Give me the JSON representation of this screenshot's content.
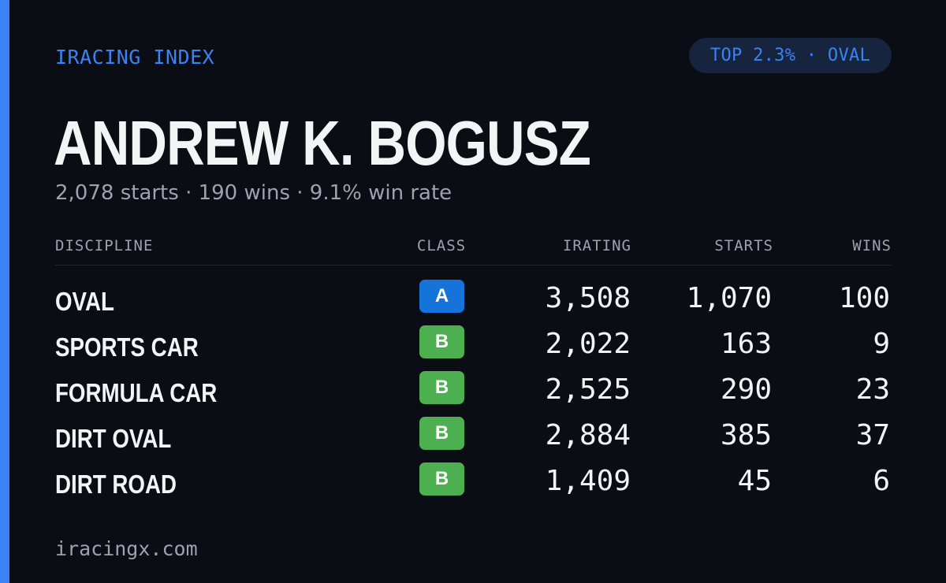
{
  "header": {
    "brand": "IRACING INDEX",
    "badge": "TOP 2.3% · OVAL"
  },
  "driver": {
    "name": "ANDREW K. BOGUSZ",
    "summary": "2,078 starts · 190 wins · 9.1% win rate"
  },
  "table": {
    "columns": {
      "discipline": "DISCIPLINE",
      "class": "CLASS",
      "irating": "IRATING",
      "starts": "STARTS",
      "wins": "WINS"
    },
    "rows": [
      {
        "discipline": "OVAL",
        "class": "A",
        "irating": "3,508",
        "starts": "1,070",
        "wins": "100"
      },
      {
        "discipline": "SPORTS CAR",
        "class": "B",
        "irating": "2,022",
        "starts": "163",
        "wins": "9"
      },
      {
        "discipline": "FORMULA CAR",
        "class": "B",
        "irating": "2,525",
        "starts": "290",
        "wins": "23"
      },
      {
        "discipline": "DIRT OVAL",
        "class": "B",
        "irating": "2,884",
        "starts": "385",
        "wins": "37"
      },
      {
        "discipline": "DIRT ROAD",
        "class": "B",
        "irating": "1,409",
        "starts": "45",
        "wins": "6"
      }
    ]
  },
  "footer": {
    "site": "iracingx.com"
  },
  "colors": {
    "background": "#0a0d14",
    "accent": "#3b82f6",
    "class_a": "#1673d9",
    "class_b": "#4caf50",
    "text_primary": "#f3f4f6",
    "text_secondary": "#9ca3af"
  }
}
